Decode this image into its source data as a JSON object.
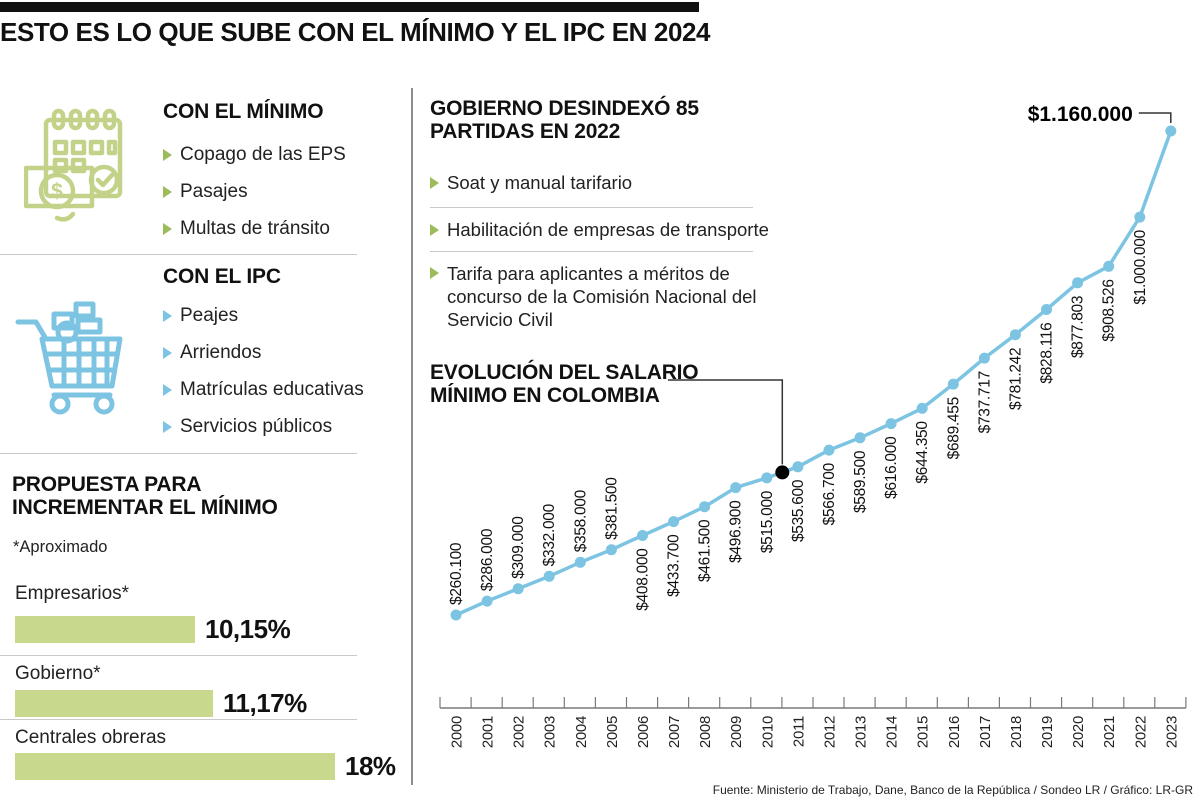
{
  "title": "ESTO ES LO QUE SUBE CON EL MÍNIMO Y EL IPC EN 2024",
  "left": {
    "minimo": {
      "heading": "CON EL MÍNIMO",
      "icon": "calendar-money-icon",
      "items": [
        "Copago de las EPS",
        "Pasajes",
        "Multas de tránsito"
      ]
    },
    "ipc": {
      "heading": "CON EL IPC",
      "icon": "shopping-cart-icon",
      "items": [
        "Peajes",
        "Arriendos",
        "Matrículas educativas",
        "Servicios públicos"
      ]
    },
    "propuesta": {
      "heading_lines": [
        "PROPUESTA PARA",
        "INCREMENTAR EL MÍNIMO"
      ],
      "note": "*Aproximado",
      "bars": [
        {
          "label": "Empresarios*",
          "value": "10,15%",
          "pct": 10.15
        },
        {
          "label": "Gobierno*",
          "value": "11,17%",
          "pct": 11.17
        },
        {
          "label": "Centrales obreras",
          "value": "18%",
          "pct": 18
        }
      ]
    }
  },
  "right": {
    "desindexo": {
      "heading_lines": [
        "GOBIERNO DESINDEXÓ 85",
        "PARTIDAS EN 2022"
      ],
      "items": [
        "Soat y manual tarifario",
        "Habilitación de empresas de transporte",
        "Tarifa para aplicantes a méritos de concurso de la Comisión Nacional del Servicio Civil"
      ]
    },
    "chart_heading_lines": [
      "EVOLUCIÓN DEL SALARIO",
      "MÍNIMO EN COLOMBIA"
    ]
  },
  "chart_data": {
    "type": "line",
    "title": "Evolución del salario mínimo en Colombia",
    "x": [
      2000,
      2001,
      2002,
      2003,
      2004,
      2005,
      2006,
      2007,
      2008,
      2009,
      2010,
      2011,
      2012,
      2013,
      2014,
      2015,
      2016,
      2017,
      2018,
      2019,
      2020,
      2021,
      2022,
      2023
    ],
    "values": [
      260100,
      286000,
      309000,
      332000,
      358000,
      381500,
      408000,
      433700,
      461500,
      496900,
      515000,
      535600,
      566700,
      589500,
      616000,
      644350,
      689455,
      737717,
      781242,
      828116,
      877803,
      908526,
      1000000,
      1160000
    ],
    "labels": [
      "$260.100",
      "$286.000",
      "$309.000",
      "$332.000",
      "$358.000",
      "$381.500",
      "$408.000",
      "$433.700",
      "$461.500",
      "$496.900",
      "$515.000",
      "$535.600",
      "$566.700",
      "$589.500",
      "$616.000",
      "$644.350",
      "$689.455",
      "$737.717",
      "$781.242",
      "$828.116",
      "$877.803",
      "$908.526",
      "$1.000.000",
      "$1.160.000"
    ],
    "max_label": "$1.160.000",
    "ylim": [
      260100,
      1160000
    ],
    "xlabel": "",
    "ylabel": "",
    "grid": false,
    "legend": "none",
    "colors": {
      "line": "#7cc4e2",
      "point": "#7cc4e2",
      "highlight_point": "#000000",
      "axis": "#7a7a7a"
    }
  },
  "footer": "Fuente: Ministerio de Trabajo, Dane, Banco de la República / Sondeo LR / Gráfico: LR-GR",
  "accents": {
    "green": "#9cbb5a",
    "green_bar": "#c8d98e",
    "green_icon": "#c2d389",
    "blue": "#7cc4e2"
  }
}
